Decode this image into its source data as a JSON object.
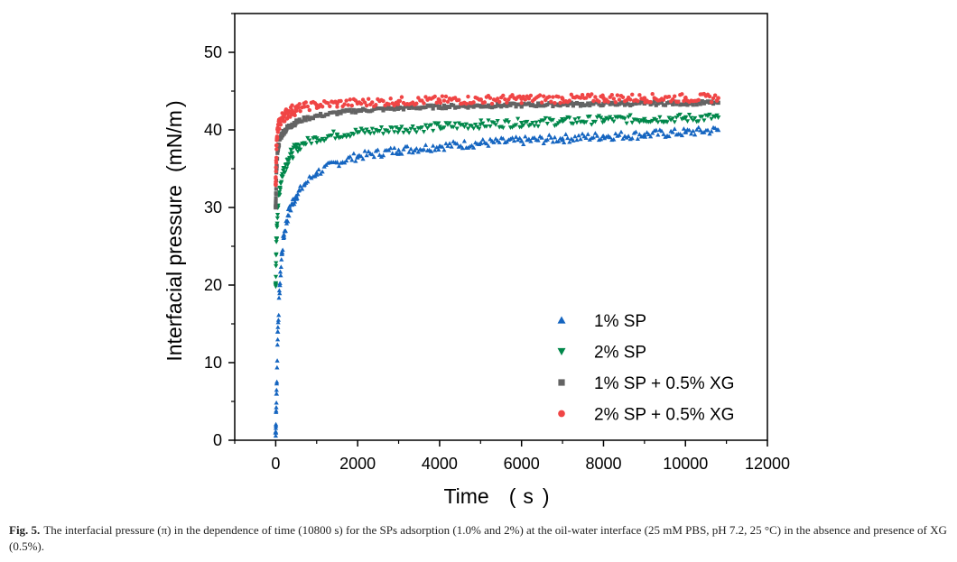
{
  "chart_data": {
    "type": "scatter",
    "xlabel": "Time",
    "xunit": "s",
    "ylabel": "Interfacial pressure",
    "yunit": "mN/m",
    "xlim": [
      -1000,
      12000
    ],
    "ylim": [
      0,
      55
    ],
    "xticks": [
      0,
      2000,
      4000,
      6000,
      8000,
      10000,
      12000
    ],
    "yticks": [
      0,
      10,
      20,
      30,
      40,
      50
    ],
    "legend_position": "bottom-right",
    "series": [
      {
        "name": "1% SP",
        "marker": "triangle-up",
        "color": "#1565c0",
        "x": [
          0,
          20,
          50,
          100,
          150,
          200,
          300,
          400,
          500,
          700,
          1000,
          1500,
          2000,
          3000,
          4000,
          5000,
          6000,
          7000,
          8000,
          9000,
          10000,
          10800
        ],
        "y": [
          1,
          6,
          14,
          20,
          24,
          26.5,
          29,
          30.5,
          31.5,
          33,
          34.5,
          35.8,
          36.6,
          37.4,
          37.9,
          38.3,
          38.6,
          38.9,
          39.2,
          39.4,
          39.7,
          40
        ]
      },
      {
        "name": "2% SP",
        "marker": "triangle-down",
        "color": "#00874a",
        "x": [
          0,
          20,
          50,
          100,
          150,
          200,
          300,
          400,
          500,
          700,
          1000,
          1500,
          2000,
          3000,
          4000,
          5000,
          6000,
          7000,
          8000,
          9000,
          10000,
          10800
        ],
        "y": [
          20,
          26,
          30,
          32.5,
          34,
          35,
          36.2,
          37,
          37.6,
          38.3,
          38.9,
          39.4,
          39.7,
          40.1,
          40.4,
          40.7,
          40.9,
          41.1,
          41.3,
          41.4,
          41.5,
          41.6
        ]
      },
      {
        "name": "1% SP + 0.5% XG",
        "marker": "square",
        "color": "#636363",
        "x": [
          0,
          20,
          50,
          100,
          150,
          200,
          300,
          400,
          500,
          700,
          1000,
          1500,
          2000,
          3000,
          4000,
          5000,
          6000,
          7000,
          8000,
          9000,
          10000,
          10800
        ],
        "y": [
          30,
          35,
          37.5,
          38.8,
          39.4,
          39.8,
          40.3,
          40.7,
          41,
          41.4,
          41.8,
          42.2,
          42.5,
          42.8,
          43,
          43.1,
          43.2,
          43.3,
          43.35,
          43.4,
          43.45,
          43.5
        ]
      },
      {
        "name": "2% SP + 0.5% XG",
        "marker": "circle",
        "color": "#f04545",
        "x": [
          0,
          20,
          50,
          100,
          150,
          200,
          300,
          400,
          500,
          700,
          1000,
          1500,
          2000,
          3000,
          4000,
          5000,
          6000,
          7000,
          8000,
          9000,
          10000,
          10800
        ],
        "y": [
          33,
          38,
          40,
          41,
          41.5,
          41.8,
          42.2,
          42.5,
          42.7,
          43,
          43.2,
          43.4,
          43.5,
          43.7,
          43.8,
          43.9,
          44,
          44,
          44.1,
          44.1,
          44.1,
          44.1
        ]
      }
    ]
  },
  "caption": {
    "label": "Fig. 5.",
    "text": "The interfacial pressure (π) in the dependence of time (10800 s) for the SPs adsorption (1.0% and 2%) at the oil-water interface (25 mM PBS, pH 7.2, 25 °C) in the absence and presence of XG (0.5%)."
  }
}
